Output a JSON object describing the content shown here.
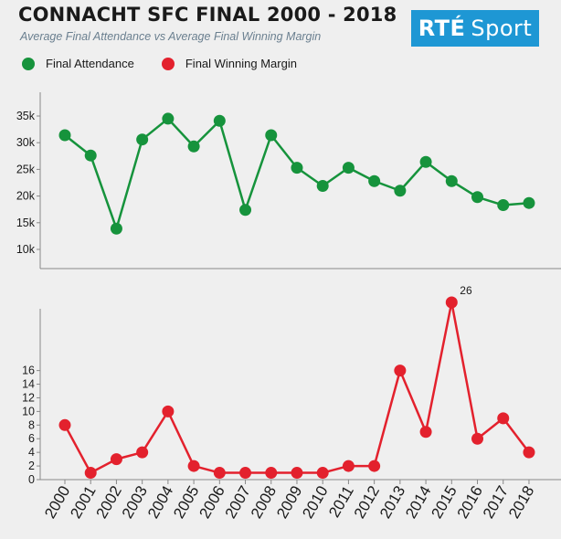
{
  "header": {
    "title": "CONNACHT SFC FINAL 2000 - 2018",
    "subtitle": "Average Final Attendance vs Average Final Winning Margin",
    "logo_rte": "RTÉ",
    "logo_sport": "Sport",
    "logo_color": "#1e97d4"
  },
  "legend": [
    {
      "label": "Final Attendance",
      "color": "#16933c"
    },
    {
      "label": "Final Winning Margin",
      "color": "#e3212d"
    }
  ],
  "chart_data": [
    {
      "type": "line",
      "x": [
        "2000",
        "2001",
        "2002",
        "2003",
        "2004",
        "2005",
        "2006",
        "2007",
        "2008",
        "2009",
        "2010",
        "2011",
        "2012",
        "2013",
        "2014",
        "2015",
        "2016",
        "2017",
        "2018"
      ],
      "series": [
        {
          "name": "Final Attendance",
          "color": "#16933c",
          "values": [
            31400,
            27600,
            13900,
            30600,
            34500,
            29300,
            34100,
            17400,
            31400,
            25300,
            21900,
            25300,
            22800,
            21000,
            26400,
            22800,
            19800,
            18300,
            18700
          ]
        }
      ],
      "ylim": [
        7000,
        37000
      ],
      "yticks": [
        10000,
        15000,
        20000,
        25000,
        30000,
        35000
      ],
      "ytick_labels": [
        "10k",
        "15k",
        "20k",
        "25k",
        "30k",
        "35k"
      ]
    },
    {
      "type": "line",
      "x": [
        "2000",
        "2001",
        "2002",
        "2003",
        "2004",
        "2005",
        "2006",
        "2007",
        "2008",
        "2009",
        "2010",
        "2011",
        "2012",
        "2013",
        "2014",
        "2015",
        "2016",
        "2017",
        "2018"
      ],
      "series": [
        {
          "name": "Final Winning Margin",
          "color": "#e3212d",
          "values": [
            8,
            1,
            3,
            4,
            10,
            2,
            1,
            1,
            1,
            1,
            1,
            2,
            2,
            16,
            7,
            26,
            6,
            9,
            4
          ]
        }
      ],
      "ylim": [
        0,
        26
      ],
      "yticks": [
        0,
        2,
        4,
        6,
        8,
        10,
        12,
        14,
        16
      ],
      "ytick_labels": [
        "0",
        "2",
        "4",
        "6",
        "8",
        "10",
        "12",
        "14",
        "16"
      ],
      "annotations": [
        {
          "x": "2015",
          "text": "26"
        }
      ]
    }
  ]
}
